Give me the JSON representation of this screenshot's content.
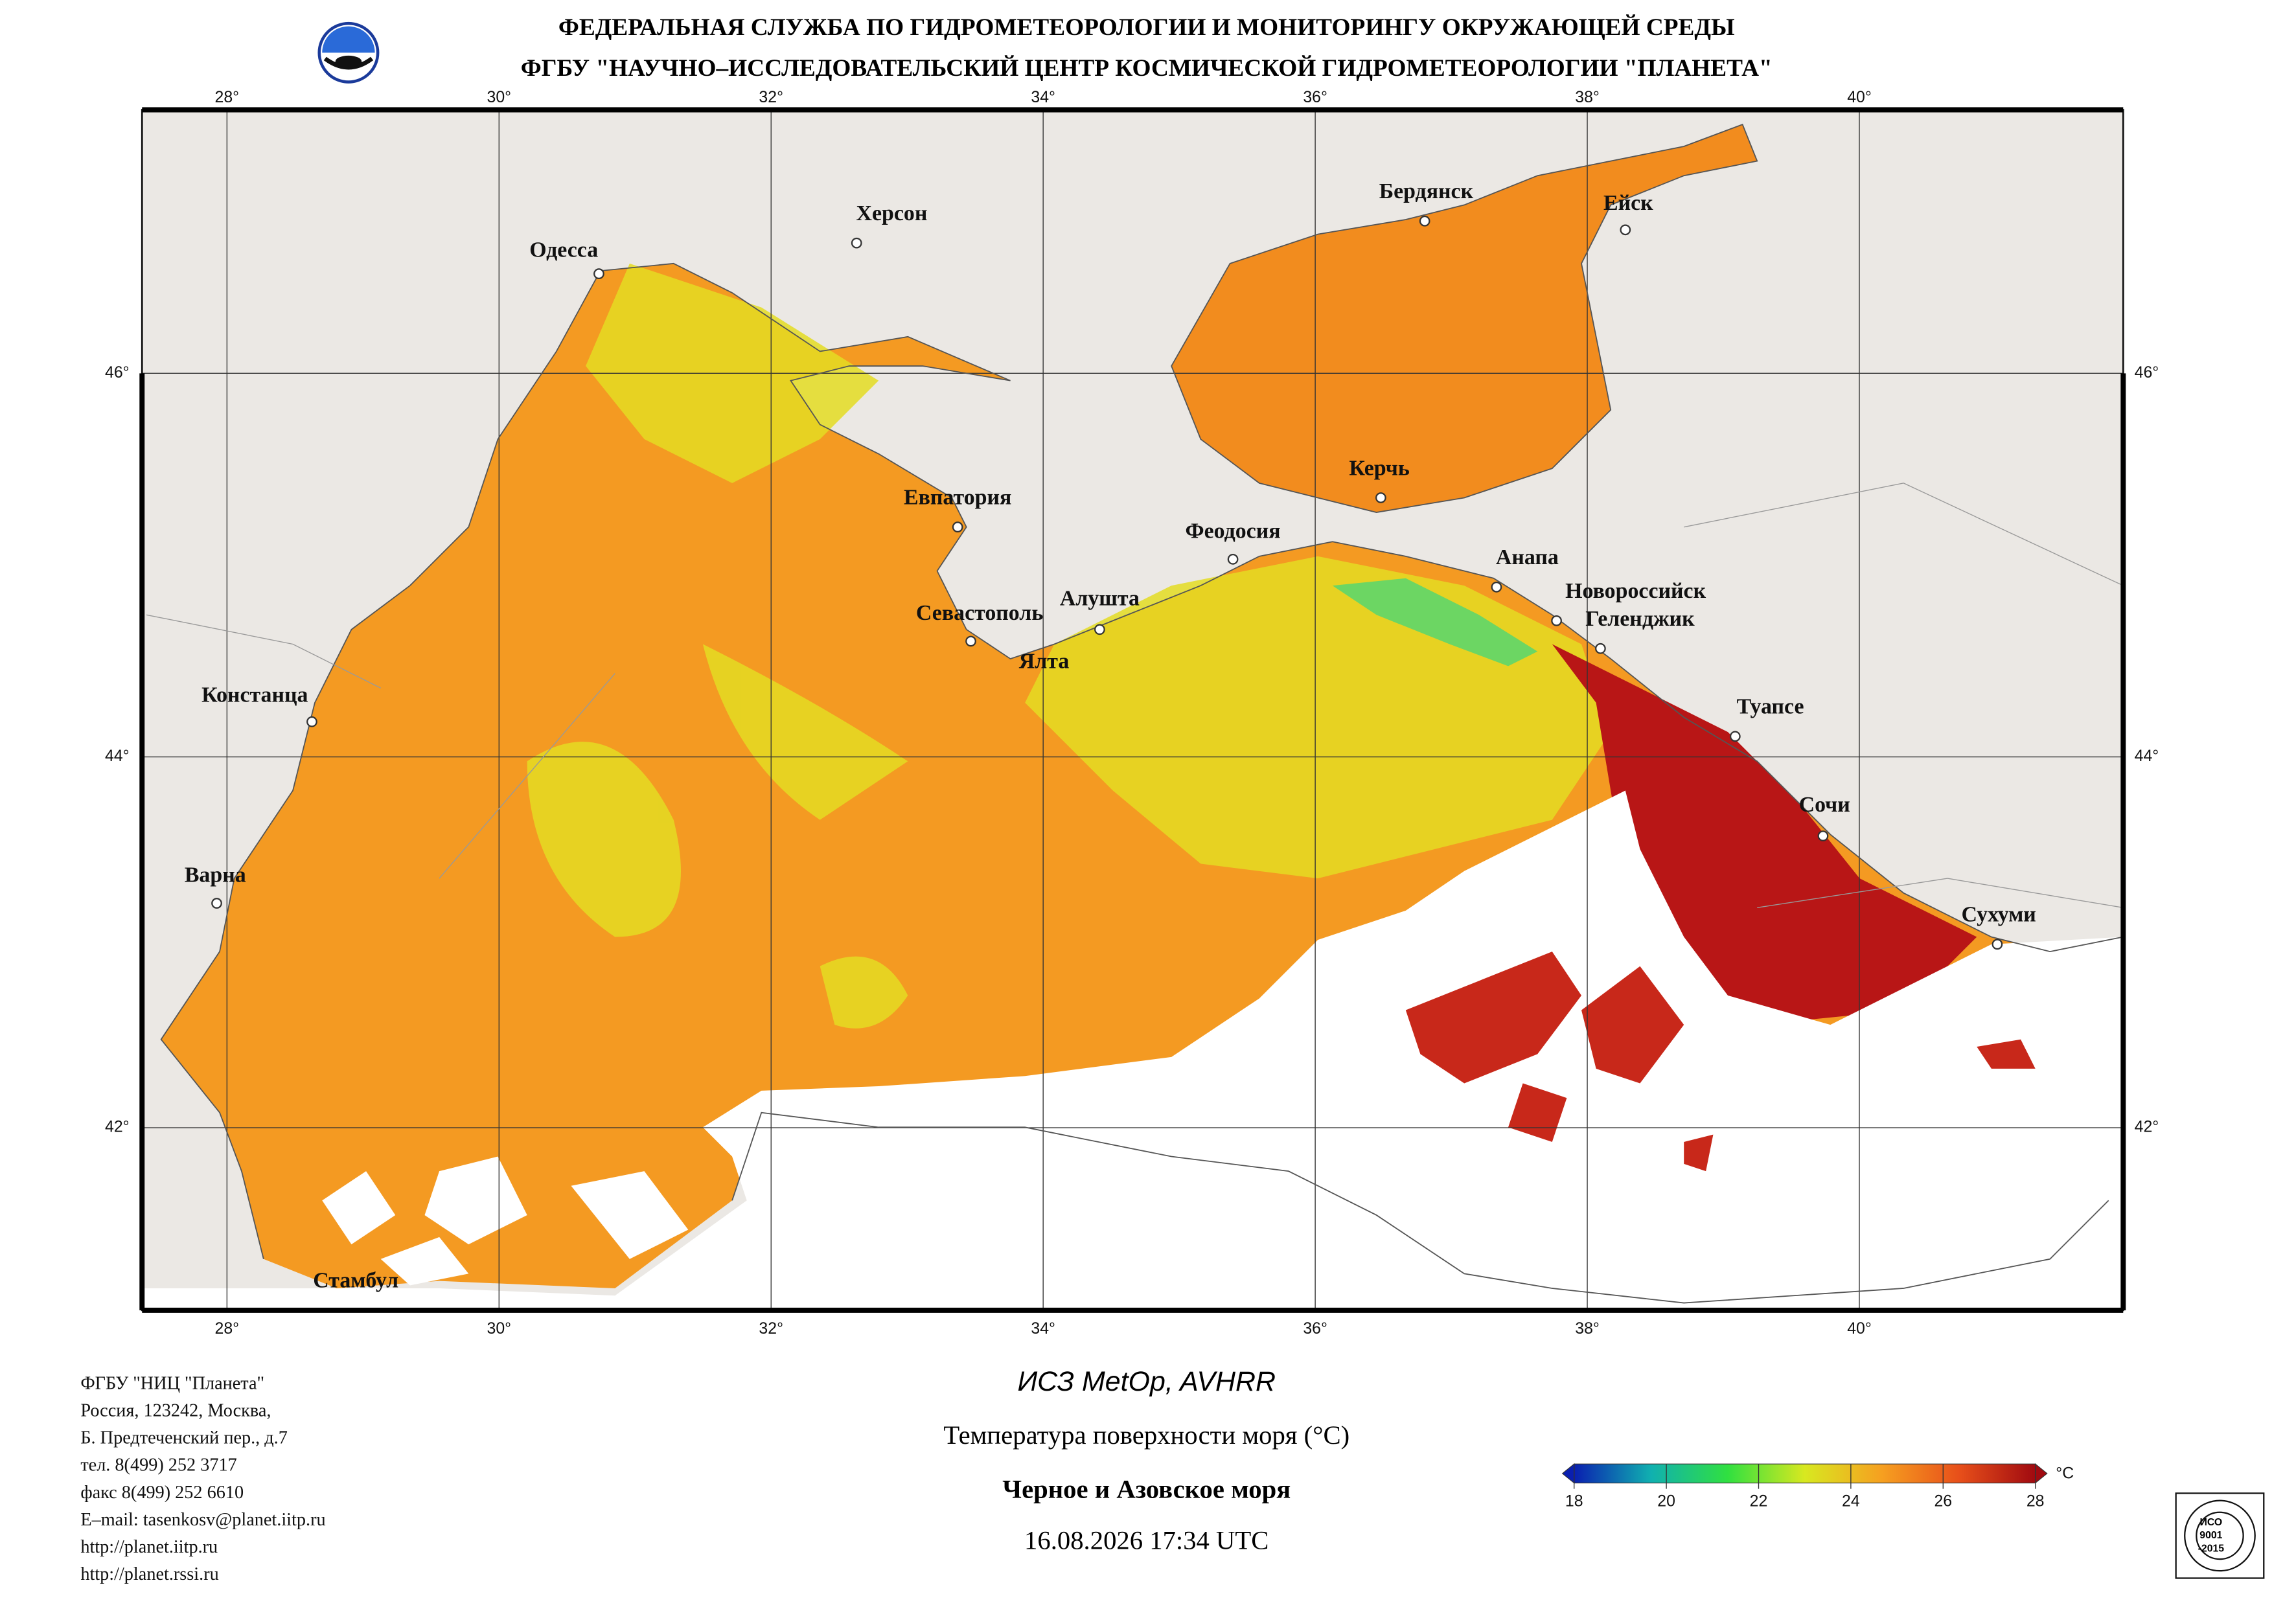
{
  "header": {
    "line1": "ФЕДЕРАЛЬНАЯ СЛУЖБА ПО ГИДРОМЕТЕОРОЛОГИИ И МОНИТОРИНГУ ОКРУЖАЮЩЕЙ СРЕДЫ",
    "line2": "ФГБУ \"НАУЧНО–ИССЛЕДОВАТЕЛЬСКИЙ ЦЕНТР КОСМИЧЕСКОЙ ГИДРОМЕТЕОРОЛОГИИ \"ПЛАНЕТА\""
  },
  "map": {
    "lon_ticks": [
      {
        "value": 28,
        "label": "28°"
      },
      {
        "value": 30,
        "label": "30°"
      },
      {
        "value": 32,
        "label": "32°"
      },
      {
        "value": 34,
        "label": "34°"
      },
      {
        "value": 36,
        "label": "36°"
      },
      {
        "value": 38,
        "label": "38°"
      },
      {
        "value": 40,
        "label": "40°"
      }
    ],
    "lat_ticks": [
      {
        "value": 42,
        "label": "42°"
      },
      {
        "value": 44,
        "label": "44°"
      },
      {
        "value": 46,
        "label": "46°"
      }
    ],
    "cities": [
      "Одесса",
      "Херсон",
      "Бердянск",
      "Ейск",
      "Керчь",
      "Евпатория",
      "Феодосия",
      "Анапа",
      "Новороссийск",
      "Геленджик",
      "Алушта",
      "Севастополь",
      "Ялта",
      "Констанца",
      "Туапсе",
      "Сочи",
      "Варна",
      "Сухуми",
      "Стамбул"
    ]
  },
  "footer": {
    "org_lines": [
      "ФГБУ \"НИЦ \"Планета\"",
      "Россия, 123242, Москва,",
      "Б. Предтеченский пер., д.7",
      "тел. 8(499) 252 3717",
      "факс 8(499) 252 6610",
      "E–mail: tasenkosv@planet.iitp.ru",
      "http://planet.iitp.ru",
      "http://planet.rssi.ru"
    ],
    "satellite": "ИСЗ MetOp, AVHRR",
    "product": "Температура поверхности моря (°С)",
    "region": "Черное и Азовское моря",
    "datetime": "16.08.2026 17:34 UTC",
    "iso": [
      "ИСО",
      "9001",
      "-2015"
    ]
  },
  "colorbar": {
    "range": [
      18,
      28
    ],
    "ticks": [
      18,
      20,
      22,
      24,
      26,
      28
    ],
    "unit": "°C",
    "colors": [
      "#0a1fb0",
      "#10b0b0",
      "#30e040",
      "#d8e820",
      "#f6a020",
      "#e8501a",
      "#a00a10"
    ]
  }
}
